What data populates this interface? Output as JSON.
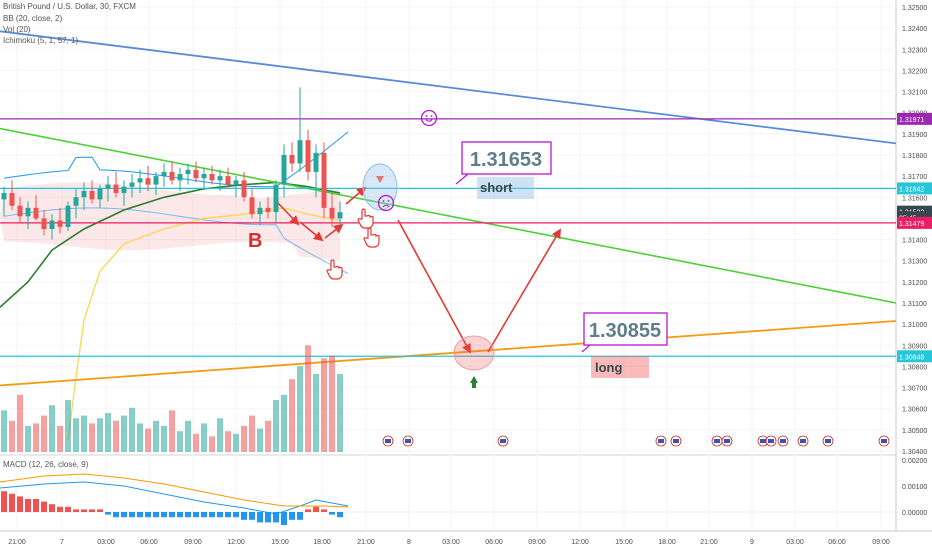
{
  "header": {
    "title": "British Pound / U.S. Dollar, 30, FXCM",
    "bb": "BB (20, close, 2)",
    "vol": "Vol (20)",
    "ichimoku": "Ichimoku (5, 1, 57, 1)"
  },
  "macd_label": "MACD (12, 26, close, 9)",
  "chart_data": {
    "type": "candlestick",
    "symbol": "GBPUSD",
    "interval": "30",
    "xticks": [
      "21:00",
      "7",
      "03:00",
      "06:00",
      "09:00",
      "12:00",
      "15:00",
      "18:00",
      "21:00",
      "8",
      "03:00",
      "06:00",
      "09:00",
      "12:00",
      "15:00",
      "18:00",
      "21:00",
      "9",
      "03:00",
      "06:00",
      "09:00"
    ],
    "yticks": [
      "1.32500",
      "1.32400",
      "1.32300",
      "1.32200",
      "1.32100",
      "1.32000",
      "1.31900",
      "1.31800",
      "1.31700",
      "1.31600",
      "1.31500",
      "1.31400",
      "1.31300",
      "1.31200",
      "1.31100",
      "1.31000",
      "1.30900",
      "1.30800",
      "1.30700",
      "1.30600",
      "1.30500",
      "1.30400"
    ],
    "macd_yticks": [
      "0.00200",
      "0.00100",
      "0.00000"
    ],
    "price_tags": [
      {
        "label": "1.31971",
        "value": 1.31971,
        "color": "#9c27b0"
      },
      {
        "label": "1.31642",
        "value": 1.31642,
        "color": "#26c6da"
      },
      {
        "label": "1.31532",
        "value": 1.31532,
        "color": "#37474f"
      },
      {
        "label": "05:45",
        "value": 1.31505,
        "color": "#37474f"
      },
      {
        "label": "1.31479",
        "value": 1.31479,
        "color": "#e91e63"
      },
      {
        "label": "1.30848",
        "value": 1.30848,
        "color": "#26c6da"
      }
    ],
    "horizontal_lines": [
      {
        "value": 1.31971,
        "color": "#9c27b0"
      },
      {
        "value": 1.31642,
        "color": "#26c6da"
      },
      {
        "value": 1.31479,
        "color": "#e91e63"
      },
      {
        "value": 1.30848,
        "color": "#26c6da"
      }
    ],
    "annotations": [
      {
        "text": "1.31653",
        "color": "#607d8b"
      },
      {
        "text": "short",
        "color": "#37474f"
      },
      {
        "text": "1.30855",
        "color": "#607d8b"
      },
      {
        "text": "long",
        "color": "#37474f"
      },
      {
        "text": "B",
        "color": "#d32f2f"
      }
    ],
    "candles": [
      [
        1.3159,
        1.3165,
        1.3151,
        1.3162
      ],
      [
        1.3162,
        1.3168,
        1.3154,
        1.3156
      ],
      [
        1.3156,
        1.316,
        1.3148,
        1.3151
      ],
      [
        1.3151,
        1.3158,
        1.3145,
        1.3155
      ],
      [
        1.3155,
        1.3161,
        1.3149,
        1.315
      ],
      [
        1.315,
        1.3154,
        1.3142,
        1.3145
      ],
      [
        1.3145,
        1.3152,
        1.314,
        1.3149
      ],
      [
        1.3149,
        1.3155,
        1.3143,
        1.3146
      ],
      [
        1.3146,
        1.3158,
        1.3144,
        1.3156
      ],
      [
        1.3156,
        1.3164,
        1.315,
        1.316
      ],
      [
        1.316,
        1.3167,
        1.3154,
        1.3163
      ],
      [
        1.3163,
        1.3168,
        1.3157,
        1.3159
      ],
      [
        1.3159,
        1.3166,
        1.3155,
        1.3164
      ],
      [
        1.3164,
        1.317,
        1.3158,
        1.3166
      ],
      [
        1.3166,
        1.3172,
        1.316,
        1.3162
      ],
      [
        1.3162,
        1.3168,
        1.3156,
        1.3165
      ],
      [
        1.3165,
        1.3171,
        1.316,
        1.3167
      ],
      [
        1.3167,
        1.3173,
        1.3162,
        1.3169
      ],
      [
        1.3169,
        1.3175,
        1.3163,
        1.3166
      ],
      [
        1.3166,
        1.3172,
        1.3161,
        1.317
      ],
      [
        1.317,
        1.3176,
        1.3165,
        1.3172
      ],
      [
        1.3172,
        1.3177,
        1.3166,
        1.3168
      ],
      [
        1.3168,
        1.3174,
        1.3163,
        1.3171
      ],
      [
        1.3171,
        1.3176,
        1.3166,
        1.3173
      ],
      [
        1.3173,
        1.3177,
        1.3167,
        1.3169
      ],
      [
        1.3169,
        1.3174,
        1.3164,
        1.3171
      ],
      [
        1.3171,
        1.3175,
        1.3166,
        1.3168
      ],
      [
        1.3168,
        1.3173,
        1.3163,
        1.317
      ],
      [
        1.317,
        1.3174,
        1.3164,
        1.3166
      ],
      [
        1.3166,
        1.317,
        1.316,
        1.3168
      ],
      [
        1.3168,
        1.3172,
        1.3158,
        1.316
      ],
      [
        1.316,
        1.3164,
        1.315,
        1.3152
      ],
      [
        1.3152,
        1.3158,
        1.3147,
        1.3155
      ],
      [
        1.3155,
        1.316,
        1.315,
        1.3153
      ],
      [
        1.3153,
        1.3168,
        1.3148,
        1.3166
      ],
      [
        1.3166,
        1.3185,
        1.316,
        1.318
      ],
      [
        1.318,
        1.3186,
        1.3172,
        1.3176
      ],
      [
        1.3176,
        1.3212,
        1.3172,
        1.3187
      ],
      [
        1.3187,
        1.3192,
        1.3168,
        1.3172
      ],
      [
        1.3172,
        1.3185,
        1.316,
        1.3181
      ],
      [
        1.3181,
        1.3186,
        1.315,
        1.3155
      ],
      [
        1.3155,
        1.3162,
        1.3146,
        1.315
      ],
      [
        1.315,
        1.3158,
        1.3145,
        1.3153
      ]
    ],
    "volume": [
      16,
      12,
      22,
      10,
      11,
      14,
      18,
      10,
      20,
      13,
      14,
      11,
      13,
      15,
      12,
      14,
      17,
      11,
      9,
      12,
      10,
      16,
      8,
      12,
      7,
      11,
      6,
      13,
      8,
      7,
      10,
      14,
      9,
      12,
      20,
      22,
      28,
      33,
      41,
      30,
      36,
      37,
      30
    ],
    "macd_hist": [
      0.0008,
      0.0007,
      0.0006,
      0.0005,
      0.0005,
      0.0004,
      0.0003,
      0.0002,
      0.0002,
      0.0001,
      0.0001,
      0.0001,
      0.0001,
      -0.0001,
      -0.0002,
      -0.0002,
      -0.0002,
      -0.0002,
      -0.0002,
      -0.0002,
      -0.0002,
      -0.0002,
      -0.0002,
      -0.0002,
      -0.0002,
      -0.0002,
      -0.0002,
      -0.0002,
      -0.0002,
      -0.0002,
      -0.0003,
      -0.0003,
      -0.0004,
      -0.0004,
      -0.0004,
      -0.0005,
      -0.0003,
      -0.0003,
      0.0001,
      0.0002,
      0.0001,
      -0.0001,
      -0.0002
    ]
  }
}
